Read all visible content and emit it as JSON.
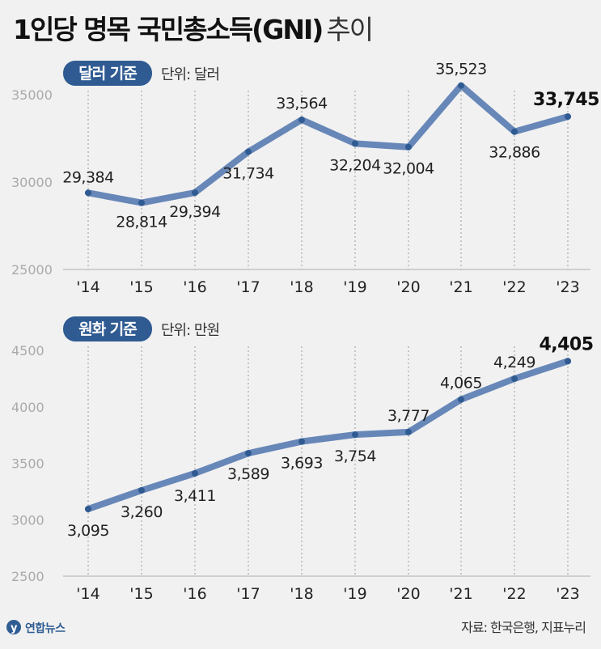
{
  "title": {
    "main": "1인당 명목 국민총소득(GNI)",
    "sub": "추이"
  },
  "colors": {
    "line": "#6787b8",
    "marker": "#2f5b92",
    "chip": "#2f5b92",
    "axis": "#bbbbbb"
  },
  "chart_data": [
    {
      "type": "line",
      "badge": "달러 기준",
      "unit": "단위: 달러",
      "categories": [
        "'14",
        "'15",
        "'16",
        "'17",
        "'18",
        "'19",
        "'20",
        "'21",
        "'22",
        "'23"
      ],
      "values": [
        29384,
        28814,
        29394,
        31734,
        33564,
        32204,
        32004,
        35523,
        32886,
        33745
      ],
      "value_labels": [
        "29,384",
        "28,814",
        "29,394",
        "31,734",
        "33,564",
        "32,204",
        "32,004",
        "35,523",
        "32,886",
        "33,745"
      ],
      "ylim": [
        25000,
        35000
      ],
      "yticks": [
        25000,
        30000,
        35000
      ],
      "grid": "vertical dashed"
    },
    {
      "type": "line",
      "badge": "원화 기준",
      "unit": "단위: 만원",
      "categories": [
        "'14",
        "'15",
        "'16",
        "'17",
        "'18",
        "'19",
        "'20",
        "'21",
        "'22",
        "'23"
      ],
      "values": [
        3095,
        3260,
        3411,
        3589,
        3693,
        3754,
        3777,
        4065,
        4249,
        4405
      ],
      "value_labels": [
        "3,095",
        "3,260",
        "3,411",
        "3,589",
        "3,693",
        "3,754",
        "3,777",
        "4,065",
        "4,249",
        "4,405"
      ],
      "ylim": [
        2500,
        4500
      ],
      "yticks": [
        2500,
        3000,
        3500,
        4000,
        4500
      ],
      "grid": "vertical dashed"
    }
  ],
  "footer": {
    "credit": "연합뉴스",
    "source": "자료: 한국은행, 지표누리"
  }
}
